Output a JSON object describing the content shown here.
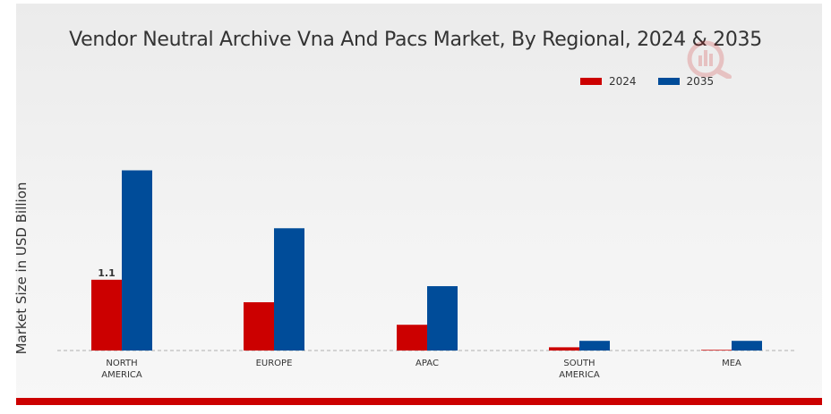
{
  "chart_data": {
    "type": "bar",
    "title": "Vendor Neutral Archive Vna And Pacs Market, By Regional, 2024 & 2035",
    "xlabel": "",
    "ylabel": "Market Size in USD Billion",
    "categories": [
      "NORTH AMERICA",
      "EUROPE",
      "APAC",
      "SOUTH AMERICA",
      "MEA"
    ],
    "category_lines": [
      [
        "NORTH",
        "AMERICA"
      ],
      [
        "EUROPE"
      ],
      [
        "APAC"
      ],
      [
        "SOUTH",
        "AMERICA"
      ],
      [
        "MEA"
      ]
    ],
    "series": [
      {
        "name": "2024",
        "color": "#cc0000",
        "values": [
          1.1,
          0.75,
          0.4,
          0.05,
          0.01
        ]
      },
      {
        "name": "2035",
        "color": "#004c99",
        "values": [
          2.8,
          1.9,
          1.0,
          0.15,
          0.15
        ]
      }
    ],
    "data_labels": [
      {
        "series": 0,
        "index": 0,
        "text": "1.1"
      }
    ],
    "ylim": [
      0,
      3.2
    ],
    "grid": false,
    "legend": "top-right"
  }
}
